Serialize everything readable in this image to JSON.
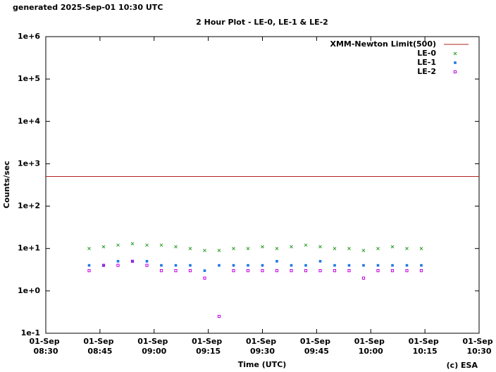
{
  "header": "generated 2025-Sep-01 10:30 UTC",
  "footer": "(c) ESA",
  "chart_data": {
    "type": "scatter",
    "title": "2 Hour Plot - LE-0, LE-1 & LE-2",
    "x_label": "Time (UTC)",
    "y_label": "Counts/sec",
    "log_y": true,
    "grid": false,
    "legend": "top-right",
    "xlim": [
      "01-Sep 08:30",
      "01-Sep 10:30"
    ],
    "xticks": [
      "01-Sep 08:30",
      "01-Sep 08:45",
      "01-Sep 09:00",
      "01-Sep 09:15",
      "01-Sep 09:30",
      "01-Sep 09:45",
      "01-Sep 10:00",
      "01-Sep 10:15",
      "01-Sep 10:30"
    ],
    "ylim": [
      0.1,
      1000000
    ],
    "yticks": [
      {
        "value": 0.1,
        "label": "1e-1"
      },
      {
        "value": 1,
        "label": "1e+0"
      },
      {
        "value": 10,
        "label": "1e+1"
      },
      {
        "value": 100,
        "label": "1e+2"
      },
      {
        "value": 1000,
        "label": "1e+3"
      },
      {
        "value": 10000,
        "label": "1e+4"
      },
      {
        "value": 100000,
        "label": "1e+5"
      },
      {
        "value": 1000000,
        "label": "1e+6"
      }
    ],
    "reference_lines": [
      {
        "name": "XMM-Newton Limit(500)",
        "value": 500,
        "color": "#b22222"
      }
    ],
    "x": [
      "01-Sep 08:42",
      "01-Sep 08:46",
      "01-Sep 08:50",
      "01-Sep 08:54",
      "01-Sep 08:58",
      "01-Sep 09:02",
      "01-Sep 09:06",
      "01-Sep 09:10",
      "01-Sep 09:14",
      "01-Sep 09:18",
      "01-Sep 09:22",
      "01-Sep 09:26",
      "01-Sep 09:30",
      "01-Sep 09:34",
      "01-Sep 09:38",
      "01-Sep 09:42",
      "01-Sep 09:46",
      "01-Sep 09:50",
      "01-Sep 09:54",
      "01-Sep 09:58",
      "01-Sep 10:02",
      "01-Sep 10:06",
      "01-Sep 10:10",
      "01-Sep 10:14"
    ],
    "series": [
      {
        "name": "LE-0",
        "color": "#2ca02c",
        "marker": "x",
        "values": [
          10,
          11,
          12,
          13,
          12,
          12,
          11,
          10,
          9,
          9,
          10,
          10,
          11,
          10,
          11,
          12,
          11,
          10,
          10,
          9,
          10,
          11,
          10,
          10
        ]
      },
      {
        "name": "LE-1",
        "color": "#1f77e4",
        "marker": "square",
        "values": [
          4,
          4,
          5,
          5,
          5,
          4,
          4,
          4,
          3,
          4,
          4,
          4,
          4,
          5,
          4,
          4,
          5,
          4,
          4,
          4,
          4,
          4,
          4,
          4
        ]
      },
      {
        "name": "LE-2",
        "color": "#c000e0",
        "marker": "open-square",
        "values": [
          3,
          4,
          4,
          5,
          4,
          3,
          3,
          3,
          2,
          0.25,
          3,
          3,
          3,
          3,
          3,
          3,
          3,
          3,
          3,
          2,
          3,
          3,
          3,
          3
        ]
      }
    ]
  }
}
